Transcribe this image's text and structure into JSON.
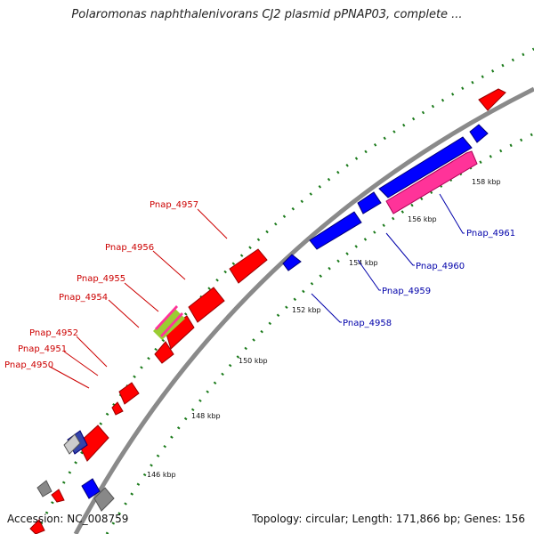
{
  "title": "Polaromonas naphthalenivorans CJ2 plasmid pPNAP03, complete ...",
  "footer": {
    "accession": "Accession: NC_008759",
    "topology": "Topology: circular; Length: 171,866 bp; Genes: 156"
  },
  "colors": {
    "forward": "#ff0000",
    "reverse": "#0000ff",
    "highlight": "#ff3399",
    "backbone": "#8a8a8a",
    "ticks": "#1a7a1a",
    "red_label": "#cc0000",
    "blue_label": "#0000aa"
  },
  "tick_labels": [
    "146 kbp",
    "148 kbp",
    "150 kbp",
    "152 kbp",
    "154 kbp",
    "156 kbp",
    "158 kbp"
  ],
  "gene_labels_forward": [
    "Pnap_4957",
    "Pnap_4956",
    "Pnap_4955",
    "Pnap_4954",
    "Pnap_4952",
    "Pnap_4951",
    "Pnap_4950"
  ],
  "gene_labels_reverse": [
    "Pnap_4961",
    "Pnap_4960",
    "Pnap_4959",
    "Pnap_4958"
  ]
}
